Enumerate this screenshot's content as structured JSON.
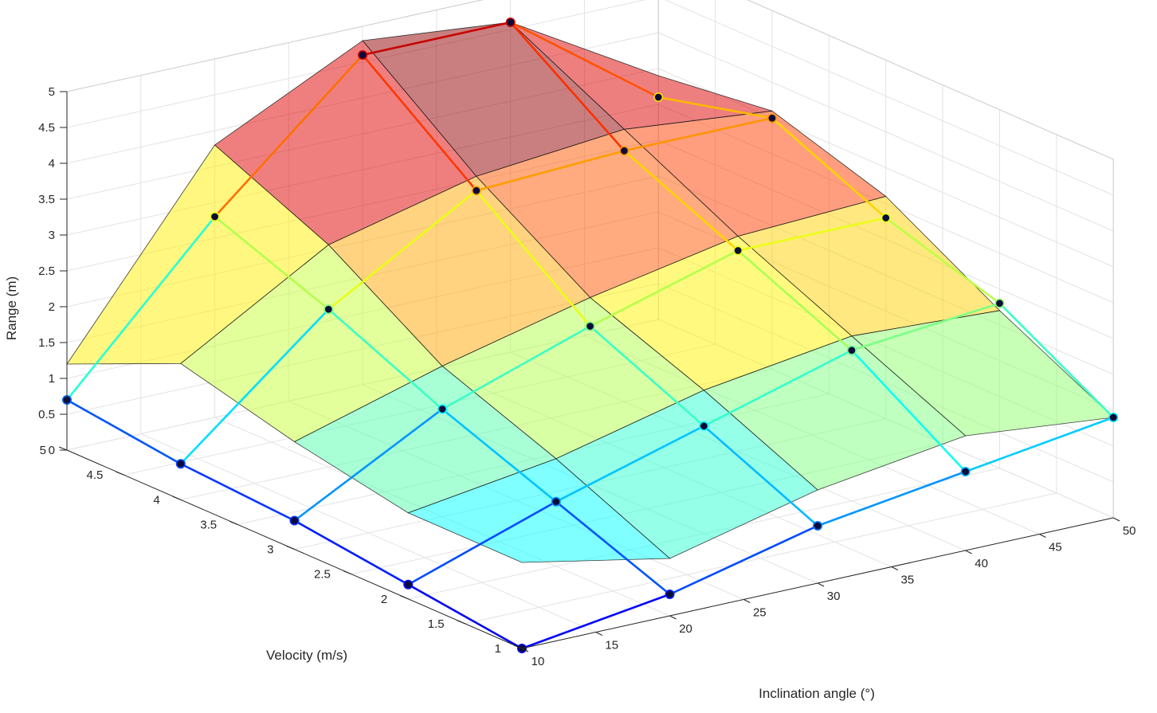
{
  "chart_data": {
    "type": "surface3d",
    "title": "",
    "xlabel": "Inclination angle (°)",
    "ylabel": "Velocity (m/s)",
    "zlabel": "Range (m)",
    "xlim": [
      10,
      50
    ],
    "ylim": [
      1,
      5
    ],
    "zlim": [
      0,
      5
    ],
    "x_ticks": [
      "10",
      "15",
      "20",
      "25",
      "30",
      "35",
      "40",
      "45",
      "50"
    ],
    "y_ticks": [
      "1",
      "1.5",
      "2",
      "2.5",
      "3",
      "3.5",
      "4",
      "4.5",
      "5"
    ],
    "z_ticks": [
      "0",
      "0.5",
      "1",
      "1.5",
      "2",
      "2.5",
      "3",
      "3.5",
      "4",
      "4.5",
      "5"
    ],
    "x": [
      10,
      20,
      30,
      40,
      50
    ],
    "y": [
      1,
      2,
      3,
      4,
      5
    ],
    "grid": true,
    "surface_z": [
      [
        1.2,
        0.8,
        1.3,
        1.6,
        1.4
      ],
      [
        1.2,
        1.5,
        2.0,
        2.3,
        2.2
      ],
      [
        1.5,
        2.1,
        2.6,
        3.0,
        3.1
      ],
      [
        1.9,
        3.1,
        3.6,
        3.8,
        3.6
      ],
      [
        1.2,
        3.8,
        4.8,
        4.6,
        3.4
      ]
    ],
    "measured_z": [
      [
        0.0,
        0.3,
        0.8,
        1.1,
        1.4
      ],
      [
        0.2,
        0.9,
        1.5,
        2.1,
        2.3
      ],
      [
        0.4,
        1.5,
        2.2,
        2.8,
        2.8
      ],
      [
        0.5,
        2.2,
        3.4,
        3.5,
        3.5
      ],
      [
        0.7,
        2.8,
        4.6,
        4.6,
        3.1
      ]
    ],
    "colormap": "jet"
  }
}
